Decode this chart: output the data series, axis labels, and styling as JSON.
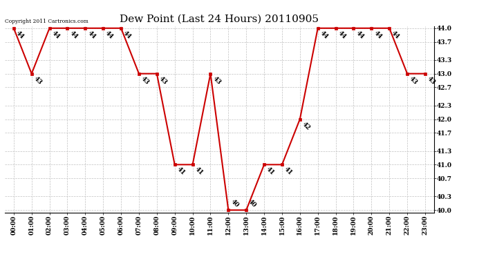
{
  "title": "Dew Point (Last 24 Hours) 20110905",
  "copyright_text": "Copyright 2011 Cartronics.com",
  "hours": [
    0,
    1,
    2,
    3,
    4,
    5,
    6,
    7,
    8,
    9,
    10,
    11,
    12,
    13,
    14,
    15,
    16,
    17,
    18,
    19,
    20,
    21,
    22,
    23
  ],
  "values": [
    44,
    43,
    44,
    44,
    44,
    44,
    44,
    43,
    43,
    41,
    41,
    43,
    40,
    40,
    41,
    41,
    42,
    44,
    44,
    44,
    44,
    44,
    43,
    43
  ],
  "x_tick_labels": [
    "00:00",
    "01:00",
    "02:00",
    "03:00",
    "04:00",
    "05:00",
    "06:00",
    "07:00",
    "08:00",
    "09:00",
    "10:00",
    "11:00",
    "12:00",
    "13:00",
    "14:00",
    "15:00",
    "16:00",
    "17:00",
    "18:00",
    "19:00",
    "20:00",
    "21:00",
    "22:00",
    "23:00"
  ],
  "y_ticks": [
    40.0,
    40.3,
    40.7,
    41.0,
    41.3,
    41.7,
    42.0,
    42.3,
    42.7,
    43.0,
    43.3,
    43.7,
    44.0
  ],
  "ylim": [
    39.95,
    44.05
  ],
  "xlim": [
    -0.5,
    23.5
  ],
  "line_color": "#cc0000",
  "marker_color": "#cc0000",
  "bg_color": "#ffffff",
  "grid_color": "#c0c0c0",
  "title_fontsize": 11,
  "label_fontsize": 6.5,
  "annotation_fontsize": 6.5,
  "copyright_fontsize": 5.5,
  "linewidth": 1.5,
  "markersize": 3
}
